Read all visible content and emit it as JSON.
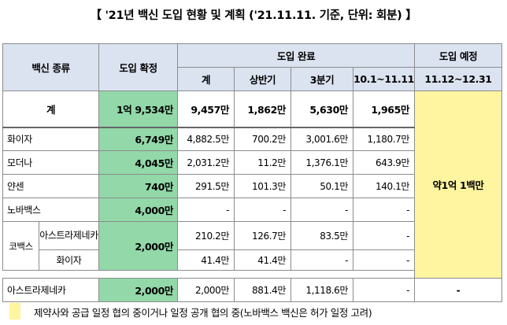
{
  "title": "【 '21년 백신 도입 현황 및 계획 ('21.11.11. 기준, 단위: 회분) 】",
  "headers": {
    "vaccine_type": "백신 종류",
    "confirmed": "도입 확정",
    "completed": "도입 완료",
    "planned": "도입 예정",
    "total": "계",
    "h1": "상반기",
    "q3": "3분기",
    "recent": "10.1~11.11",
    "future": "11.12~12.31"
  },
  "rows": {
    "total": {
      "label": "계",
      "confirmed": "1억 9,534만",
      "total": "9,457만",
      "h1": "1,862만",
      "q3": "5,630만",
      "recent": "1,965만"
    },
    "pfizer": {
      "label": "화이자",
      "confirmed": "6,749만",
      "total": "4,882.5만",
      "h1": "700.2만",
      "q3": "3,001.6만",
      "recent": "1,180.7만"
    },
    "moderna": {
      "label": "모더나",
      "confirmed": "4,045만",
      "total": "2,031.2만",
      "h1": "11.2만",
      "q3": "1,376.1만",
      "recent": "643.9만"
    },
    "janssen": {
      "label": "얀센",
      "confirmed": "740만",
      "total": "291.5만",
      "h1": "101.3만",
      "q3": "50.1만",
      "recent": "140.1만"
    },
    "novavax": {
      "label": "노바백스",
      "confirmed": "4,000만",
      "total": "-",
      "h1": "-",
      "q3": "-",
      "recent": "-"
    },
    "covax": {
      "label": "코백스",
      "confirmed": "2,000만",
      "az": {
        "label": "아스트라제네카",
        "total": "210.2만",
        "h1": "126.7만",
        "q3": "83.5만",
        "recent": "-"
      },
      "pfizer": {
        "label": "화이자",
        "total": "41.4만",
        "h1": "41.4만",
        "q3": "-",
        "recent": "-"
      }
    },
    "astrazeneca": {
      "label": "아스트라제네카",
      "confirmed": "2,000만",
      "total": "2,000만",
      "h1": "881.4만",
      "q3": "1,118.6만",
      "recent": "-",
      "future": "-"
    }
  },
  "future_merged": "약1억 1백만",
  "legend": "제약사와 공급 일정 협의 중이거나 일정 공개 협의 중(노바백스 백신은 허가 일정 고려)",
  "colors": {
    "header": "#dbe3f1",
    "confirmed": "#92d8a9",
    "planned": "#fff4a0"
  }
}
